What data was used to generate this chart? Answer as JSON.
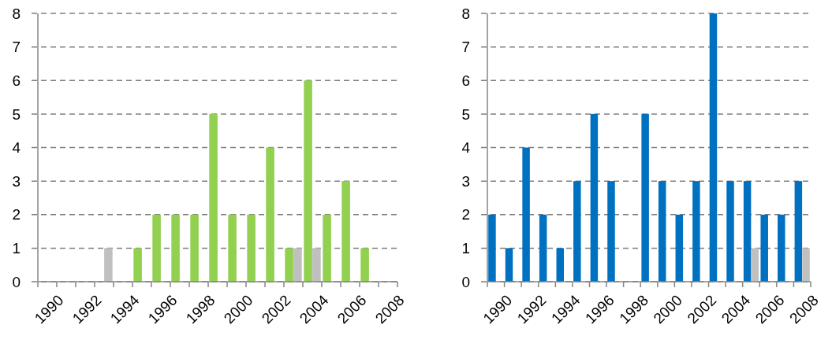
{
  "chart_data": [
    {
      "type": "bar",
      "categories": [
        "1990",
        null,
        "1992",
        null,
        "1994",
        null,
        "1996",
        null,
        "1998",
        null,
        "2000",
        null,
        "2002",
        null,
        "2004",
        null,
        "2006",
        null,
        "2008"
      ],
      "series": [
        {
          "color": "#92d050",
          "values": [
            0,
            0,
            0,
            0,
            0,
            1,
            2,
            2,
            2,
            5,
            2,
            2,
            4,
            1,
            6,
            2,
            3,
            1,
            0
          ]
        },
        {
          "color": "#c0c0c0",
          "values": [
            null,
            null,
            null,
            1,
            null,
            null,
            null,
            null,
            null,
            null,
            null,
            null,
            null,
            1,
            1,
            null,
            null,
            null,
            null
          ]
        }
      ],
      "ylim": [
        0,
        8
      ],
      "yticks": [
        0,
        1,
        2,
        3,
        4,
        5,
        6,
        7,
        8
      ],
      "grid": "y",
      "legend": false
    },
    {
      "type": "bar",
      "categories": [
        "1990",
        null,
        "1992",
        null,
        "1994",
        null,
        "1996",
        null,
        "1998",
        null,
        "2000",
        null,
        "2002",
        null,
        "2004",
        null,
        "2006",
        null,
        "2008"
      ],
      "series": [
        {
          "color": "#0070c0",
          "values": [
            2,
            1,
            4,
            2,
            1,
            3,
            5,
            3,
            0,
            5,
            3,
            2,
            3,
            8,
            3,
            3,
            2,
            2,
            3
          ]
        },
        {
          "color": "#c0c0c0",
          "values": [
            null,
            null,
            null,
            null,
            null,
            null,
            null,
            null,
            null,
            null,
            null,
            null,
            null,
            null,
            null,
            1,
            null,
            null,
            1
          ]
        }
      ],
      "ylim": [
        0,
        8
      ],
      "yticks": [
        0,
        1,
        2,
        3,
        4,
        5,
        6,
        7,
        8
      ],
      "grid": "y",
      "legend": false
    }
  ]
}
